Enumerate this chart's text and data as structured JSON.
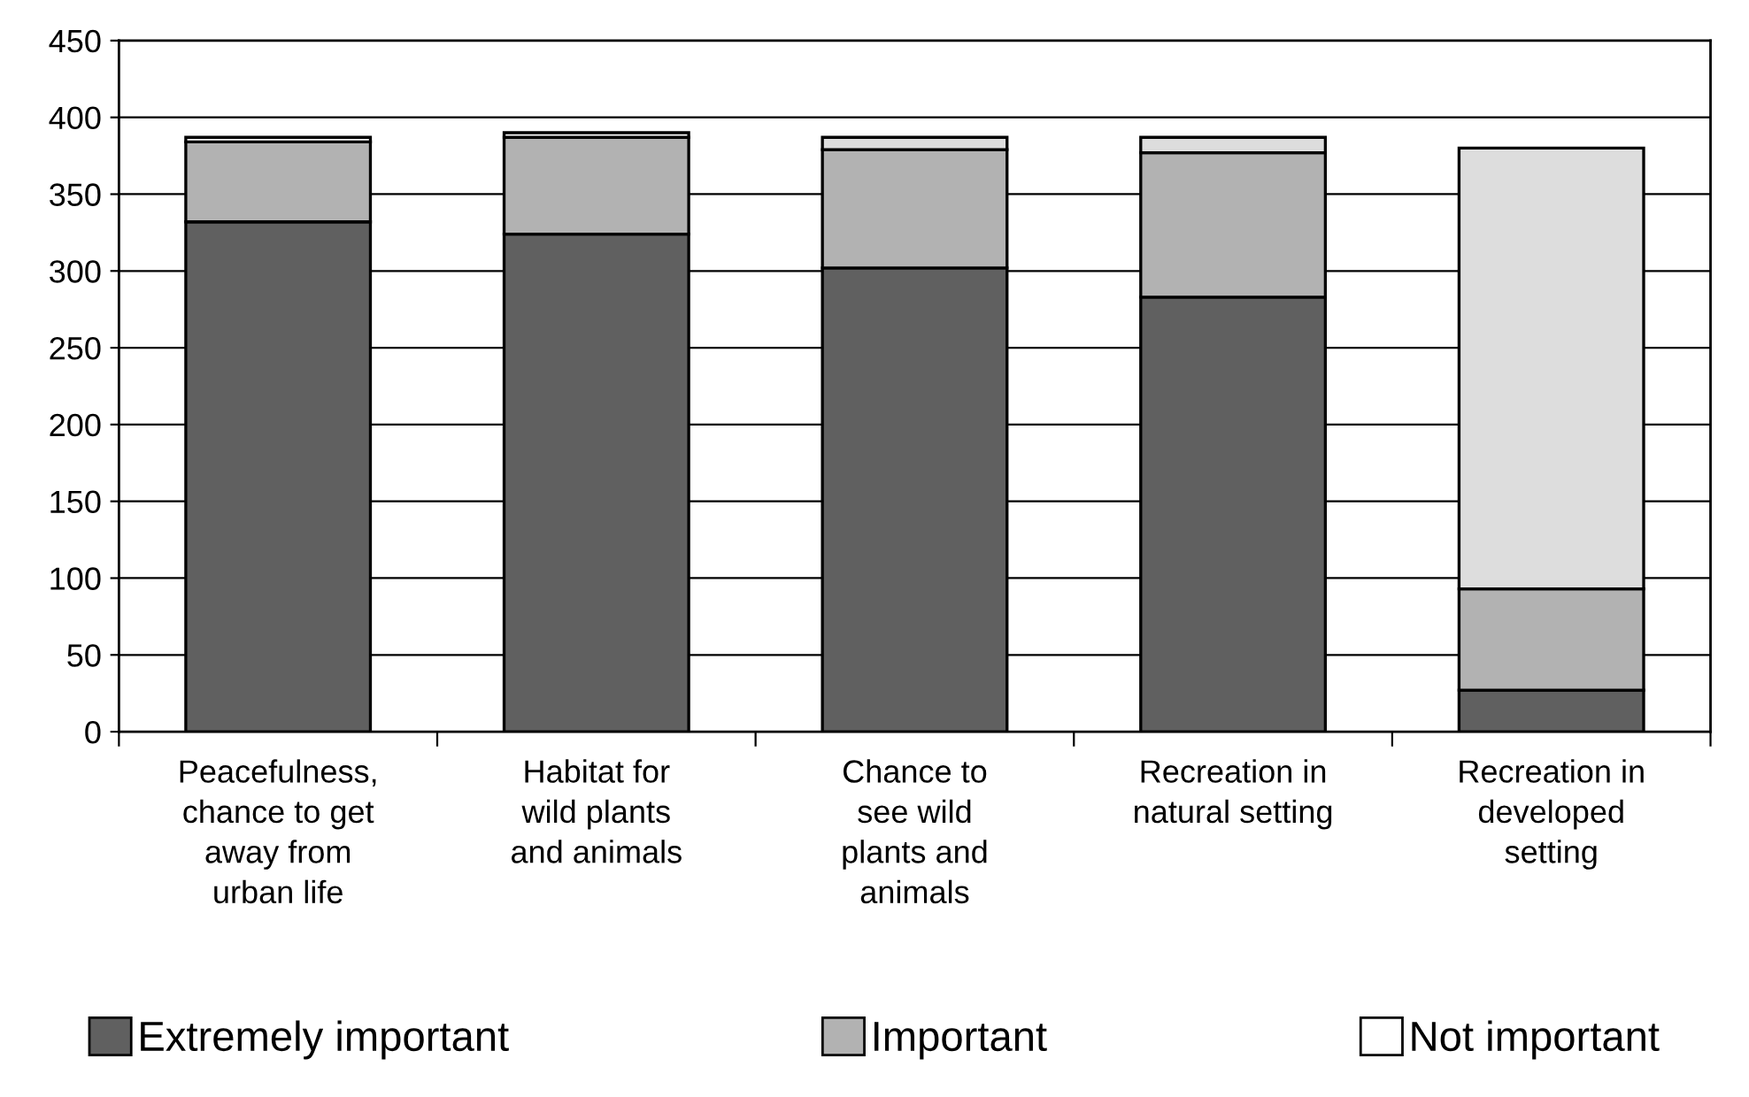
{
  "chart_data": {
    "type": "bar",
    "stacked": true,
    "categories": [
      "Peacefulness,\nchance to get\naway from\nurban life",
      "Habitat for\nwild plants\nand animals",
      "Chance to\nsee wild\nplants and\nanimals",
      "Recreation in\nnatural setting",
      "Recreation in\ndeveloped\nsetting"
    ],
    "series": [
      {
        "name": "Extremely important",
        "color": "#606060",
        "values": [
          332,
          324,
          302,
          283,
          27
        ]
      },
      {
        "name": "Important",
        "color": "#b2b2b2",
        "values": [
          52,
          63,
          77,
          94,
          66
        ]
      },
      {
        "name": "Not important",
        "color": "#ffffff",
        "colors": [
          "#ffffff",
          "#ffffff",
          "#dddddd",
          "#dddddd",
          "#dddddd"
        ],
        "values": [
          3,
          3,
          8,
          10,
          287
        ]
      }
    ],
    "ylim": [
      0,
      450
    ],
    "yticks": [
      0,
      50,
      100,
      150,
      200,
      250,
      300,
      350,
      400,
      450
    ],
    "grid": "y",
    "legend": "bottom"
  }
}
